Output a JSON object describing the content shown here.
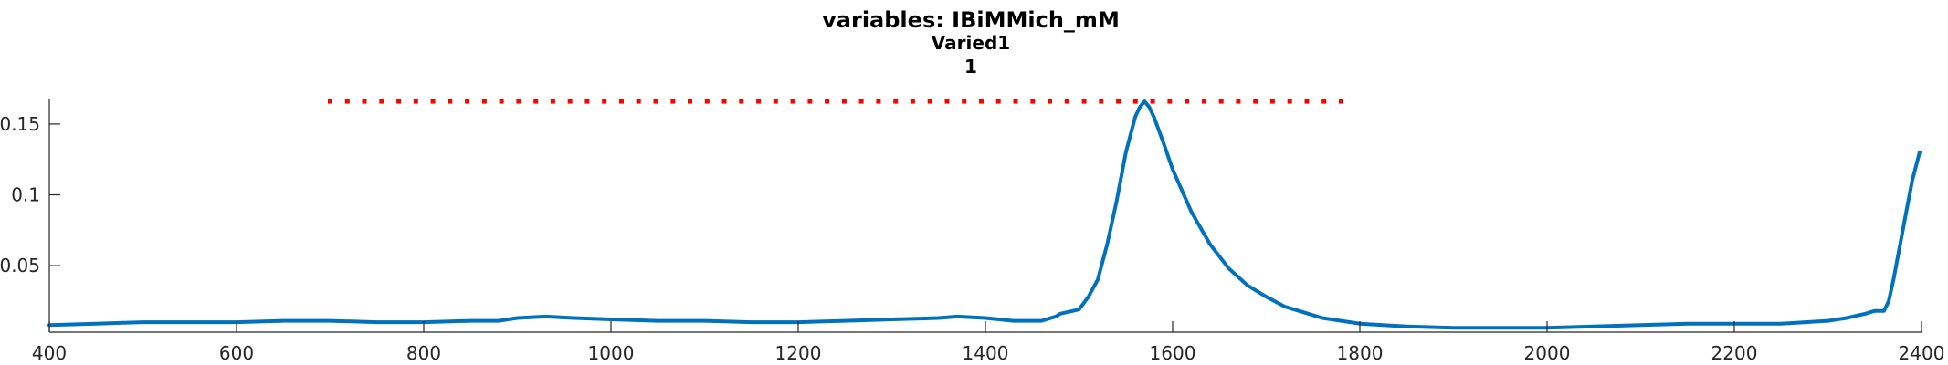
{
  "title": {
    "line1": "variables: IBiMMich_mM",
    "line2": "Varied1",
    "line3": "1"
  },
  "colors": {
    "series": "#0072BD",
    "reference": "#FF0000",
    "axis": "#262626"
  },
  "chart_data": {
    "type": "line",
    "title": "variables: IBiMMich_mM",
    "subtitle": [
      "Varied1",
      "1"
    ],
    "xlabel": "",
    "ylabel": "",
    "xlim": [
      400,
      2400
    ],
    "ylim": [
      0.003,
      0.168
    ],
    "grid": false,
    "x_ticks": [
      400,
      600,
      800,
      1000,
      1200,
      1400,
      1600,
      1800,
      2000,
      2200,
      2400
    ],
    "x_tick_labels": [
      "400",
      "600",
      "800",
      "1000",
      "1200",
      "1400",
      "1600",
      "1800",
      "2000",
      "2200",
      "2400"
    ],
    "y_ticks": [
      0.05,
      0.1,
      0.15
    ],
    "y_tick_labels": [
      "0.05",
      "0.1",
      "0.15"
    ],
    "series": [
      {
        "style": "solid",
        "x": [
          400,
          450,
          500,
          550,
          600,
          650,
          700,
          750,
          800,
          850,
          880,
          900,
          930,
          960,
          1000,
          1050,
          1100,
          1150,
          1200,
          1250,
          1300,
          1350,
          1370,
          1400,
          1430,
          1460,
          1475,
          1480,
          1500,
          1510,
          1520,
          1530,
          1540,
          1550,
          1560,
          1565,
          1570,
          1575,
          1580,
          1590,
          1600,
          1620,
          1640,
          1660,
          1680,
          1700,
          1720,
          1740,
          1760,
          1780,
          1800,
          1850,
          1900,
          1950,
          2000,
          2050,
          2100,
          2150,
          2200,
          2250,
          2300,
          2320,
          2340,
          2350,
          2360,
          2365,
          2370,
          2380,
          2390,
          2398
        ],
        "y": [
          0.008,
          0.009,
          0.01,
          0.01,
          0.01,
          0.011,
          0.011,
          0.01,
          0.01,
          0.011,
          0.011,
          0.013,
          0.014,
          0.013,
          0.012,
          0.011,
          0.011,
          0.01,
          0.01,
          0.011,
          0.012,
          0.013,
          0.014,
          0.013,
          0.011,
          0.011,
          0.014,
          0.016,
          0.019,
          0.028,
          0.04,
          0.065,
          0.095,
          0.13,
          0.155,
          0.162,
          0.166,
          0.162,
          0.155,
          0.137,
          0.118,
          0.088,
          0.065,
          0.048,
          0.036,
          0.028,
          0.021,
          0.017,
          0.013,
          0.011,
          0.009,
          0.007,
          0.006,
          0.006,
          0.006,
          0.007,
          0.008,
          0.009,
          0.009,
          0.009,
          0.011,
          0.013,
          0.016,
          0.018,
          0.018,
          0.025,
          0.04,
          0.075,
          0.11,
          0.13
        ]
      },
      {
        "style": "dotted",
        "x": [
          700,
          1780
        ],
        "y": [
          0.166,
          0.166
        ]
      }
    ]
  }
}
